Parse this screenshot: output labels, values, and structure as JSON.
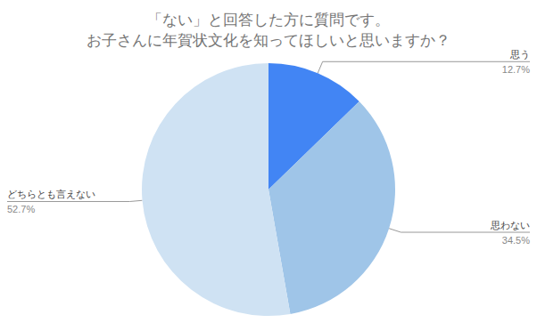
{
  "chart_data": {
    "type": "pie",
    "title": "「ない」と回答した方に質問です。\nお子さんに年賀状文化を知ってほしいと思いますか？",
    "categories": [
      "思う",
      "思わない",
      "どちらとも言えない"
    ],
    "values": [
      12.7,
      34.5,
      52.7
    ],
    "value_labels": [
      "12.7%",
      "34.5%",
      "52.7%"
    ],
    "colors": [
      "#4285f4",
      "#9fc5e8",
      "#cfe2f3"
    ],
    "data_labels": true
  }
}
